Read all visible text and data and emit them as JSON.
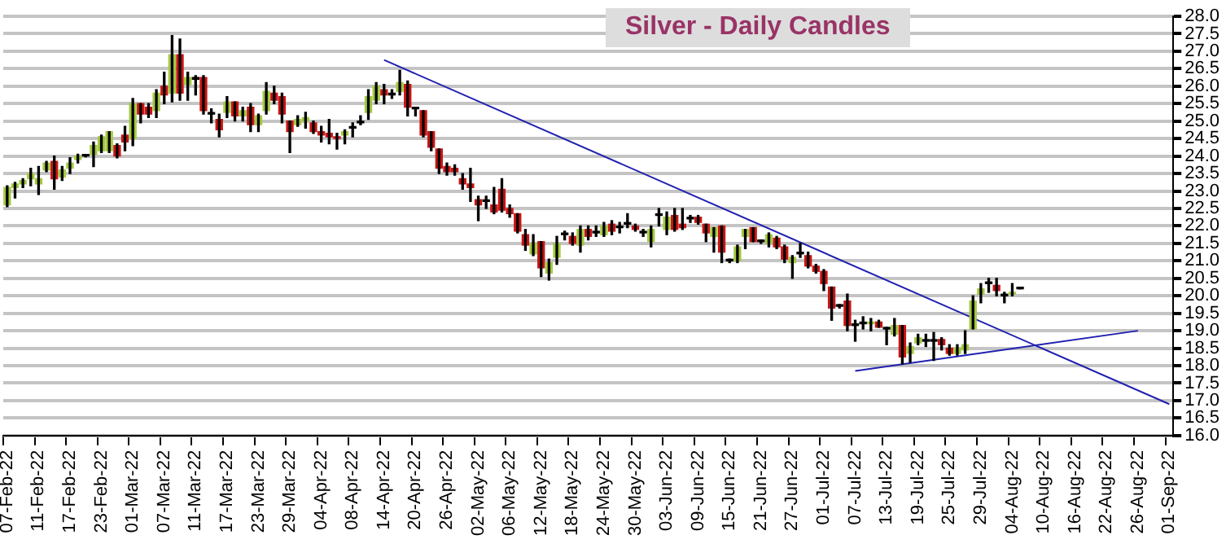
{
  "chart_data": {
    "type": "candlestick",
    "title": "Silver - Daily Candles",
    "categories": [
      "07-Feb-22",
      null,
      null,
      null,
      "11-Feb-22",
      null,
      null,
      null,
      "17-Feb-22",
      null,
      null,
      null,
      "23-Feb-22",
      null,
      null,
      null,
      "01-Mar-22",
      null,
      null,
      null,
      "07-Mar-22",
      null,
      null,
      null,
      "11-Mar-22",
      null,
      null,
      null,
      "17-Mar-22",
      null,
      null,
      null,
      "23-Mar-22",
      null,
      null,
      null,
      "29-Mar-22",
      null,
      null,
      null,
      "04-Apr-22",
      null,
      null,
      null,
      "08-Apr-22",
      null,
      null,
      null,
      "14-Apr-22",
      null,
      null,
      null,
      "20-Apr-22",
      null,
      null,
      null,
      "26-Apr-22",
      null,
      null,
      null,
      "02-May-22",
      null,
      null,
      null,
      "06-May-22",
      null,
      null,
      null,
      "12-May-22",
      null,
      null,
      null,
      "18-May-22",
      null,
      null,
      null,
      "24-May-22",
      null,
      null,
      null,
      "30-May-22",
      null,
      null,
      null,
      "03-Jun-22",
      null,
      null,
      null,
      "09-Jun-22",
      null,
      null,
      null,
      "15-Jun-22",
      null,
      null,
      null,
      "21-Jun-22",
      null,
      null,
      null,
      "27-Jun-22",
      null,
      null,
      null,
      "01-Jul-22",
      null,
      null,
      null,
      "07-Jul-22",
      null,
      null,
      null,
      "13-Jul-22",
      null,
      null,
      null,
      "19-Jul-22",
      null,
      null,
      null,
      "25-Jul-22",
      null,
      null,
      null,
      "29-Jul-22",
      null,
      null,
      null,
      "04-Aug-22",
      null,
      null,
      null,
      "10-Aug-22",
      null,
      null,
      null,
      "16-Aug-22",
      null,
      null,
      null,
      "22-Aug-22",
      null,
      null,
      null,
      "26-Aug-22",
      null,
      null,
      null,
      "01-Sep-22"
    ],
    "ohlc": [
      [
        22.6,
        23.15,
        22.55,
        23.1
      ],
      [
        23.1,
        23.25,
        22.8,
        23.2
      ],
      [
        23.2,
        23.35,
        23.1,
        23.3
      ],
      [
        23.35,
        23.65,
        23.15,
        23.5
      ],
      [
        23.2,
        23.7,
        22.9,
        23.35
      ],
      [
        23.6,
        23.85,
        23.55,
        23.8
      ],
      [
        23.85,
        24.0,
        23.05,
        23.35
      ],
      [
        23.4,
        23.7,
        23.3,
        23.6
      ],
      [
        23.65,
        23.95,
        23.5,
        23.8
      ],
      [
        23.9,
        24.05,
        23.8,
        24.0
      ],
      [
        24.0,
        24.02,
        23.98,
        24.0
      ],
      [
        24.05,
        24.4,
        23.7,
        24.3
      ],
      [
        24.15,
        24.6,
        24.1,
        24.55
      ],
      [
        24.15,
        24.7,
        24.1,
        24.7
      ],
      [
        24.3,
        24.35,
        23.95,
        24.0
      ],
      [
        24.6,
        24.85,
        24.15,
        24.4
      ],
      [
        24.5,
        25.65,
        24.3,
        25.5
      ],
      [
        25.5,
        25.5,
        24.95,
        25.2
      ],
      [
        25.4,
        25.5,
        25.1,
        25.2
      ],
      [
        25.3,
        25.9,
        25.1,
        25.8
      ],
      [
        26.0,
        26.4,
        25.5,
        25.75
      ],
      [
        25.8,
        27.45,
        25.55,
        26.9
      ],
      [
        26.9,
        27.35,
        25.6,
        25.8
      ],
      [
        26.05,
        26.4,
        25.6,
        26.25
      ],
      [
        26.2,
        26.3,
        25.75,
        26.2
      ],
      [
        26.25,
        26.3,
        25.2,
        25.3
      ],
      [
        25.2,
        25.35,
        24.95,
        25.2
      ],
      [
        25.05,
        25.2,
        24.55,
        24.75
      ],
      [
        25.25,
        25.7,
        25.1,
        25.55
      ],
      [
        25.55,
        25.55,
        25.0,
        25.15
      ],
      [
        25.15,
        25.4,
        25.0,
        25.3
      ],
      [
        25.4,
        25.5,
        24.7,
        24.9
      ],
      [
        24.9,
        25.2,
        24.7,
        25.15
      ],
      [
        25.3,
        26.1,
        25.2,
        25.85
      ],
      [
        25.8,
        26.0,
        25.5,
        25.6
      ],
      [
        25.7,
        25.8,
        24.95,
        25.2
      ],
      [
        25.0,
        25.0,
        24.1,
        24.7
      ],
      [
        24.9,
        25.15,
        24.85,
        25.05
      ],
      [
        25.0,
        25.25,
        24.8,
        25.1
      ],
      [
        24.95,
        25.0,
        24.65,
        24.7
      ],
      [
        24.7,
        24.85,
        24.4,
        24.6
      ],
      [
        24.65,
        25.05,
        24.35,
        24.55
      ],
      [
        24.55,
        24.65,
        24.2,
        24.5
      ],
      [
        24.6,
        24.75,
        24.35,
        24.7
      ],
      [
        24.8,
        24.95,
        24.55,
        24.8
      ],
      [
        24.95,
        25.15,
        24.9,
        24.95
      ],
      [
        25.25,
        25.9,
        25.05,
        25.7
      ],
      [
        25.6,
        26.1,
        25.5,
        26.0
      ],
      [
        25.9,
        26.05,
        25.5,
        25.75
      ],
      [
        25.75,
        25.9,
        25.65,
        25.75
      ],
      [
        25.85,
        26.45,
        25.75,
        26.1
      ],
      [
        26.05,
        26.15,
        25.15,
        25.4
      ],
      [
        25.35,
        25.4,
        25.15,
        25.35
      ],
      [
        25.3,
        25.3,
        24.55,
        24.6
      ],
      [
        24.7,
        24.7,
        24.15,
        24.25
      ],
      [
        24.2,
        24.2,
        23.5,
        23.65
      ],
      [
        23.7,
        23.8,
        23.45,
        23.55
      ],
      [
        23.65,
        23.75,
        23.45,
        23.55
      ],
      [
        23.35,
        23.5,
        23.05,
        23.2
      ],
      [
        23.2,
        23.65,
        22.7,
        23.1
      ],
      [
        22.75,
        22.85,
        22.15,
        22.6
      ],
      [
        22.7,
        22.85,
        22.5,
        22.7
      ],
      [
        22.6,
        23.1,
        22.35,
        22.4
      ],
      [
        23.05,
        23.35,
        22.4,
        22.45
      ],
      [
        22.5,
        22.6,
        22.25,
        22.35
      ],
      [
        22.35,
        22.35,
        21.8,
        21.85
      ],
      [
        21.75,
        21.9,
        21.3,
        21.45
      ],
      [
        21.2,
        21.75,
        21.15,
        21.5
      ],
      [
        21.55,
        21.55,
        20.55,
        20.8
      ],
      [
        20.65,
        21.05,
        20.45,
        20.95
      ],
      [
        21.1,
        21.7,
        20.9,
        21.5
      ],
      [
        21.75,
        21.85,
        21.6,
        21.75
      ],
      [
        21.7,
        21.8,
        21.45,
        21.5
      ],
      [
        21.45,
        22.0,
        21.25,
        21.9
      ],
      [
        21.9,
        22.0,
        21.6,
        21.7
      ],
      [
        21.8,
        22.0,
        21.7,
        21.8
      ],
      [
        21.75,
        22.1,
        21.7,
        22.0
      ],
      [
        22.05,
        22.15,
        21.75,
        21.85
      ],
      [
        21.95,
        22.1,
        21.8,
        21.95
      ],
      [
        22.05,
        22.35,
        21.95,
        22.05
      ],
      [
        22.0,
        22.05,
        21.85,
        21.9
      ],
      [
        21.8,
        21.9,
        21.7,
        21.8
      ],
      [
        21.55,
        22.0,
        21.4,
        21.9
      ],
      [
        22.3,
        22.5,
        22.0,
        22.3
      ],
      [
        21.9,
        22.4,
        21.75,
        22.25
      ],
      [
        22.3,
        22.5,
        21.85,
        21.9
      ],
      [
        22.05,
        22.5,
        21.9,
        21.95
      ],
      [
        22.2,
        22.3,
        22.1,
        22.2
      ],
      [
        22.25,
        22.3,
        22.05,
        22.1
      ],
      [
        22.05,
        22.05,
        21.55,
        21.8
      ],
      [
        21.7,
        21.95,
        21.25,
        21.95
      ],
      [
        22.0,
        22.0,
        20.95,
        21.25
      ],
      [
        21.0,
        21.05,
        20.95,
        21.0
      ],
      [
        21.0,
        21.45,
        20.95,
        21.4
      ],
      [
        21.7,
        21.9,
        21.35,
        21.9
      ],
      [
        21.95,
        21.95,
        21.55,
        21.55
      ],
      [
        21.55,
        21.6,
        21.5,
        21.55
      ],
      [
        21.5,
        21.8,
        21.4,
        21.75
      ],
      [
        21.65,
        21.7,
        21.35,
        21.4
      ],
      [
        21.4,
        21.45,
        20.95,
        21.05
      ],
      [
        20.95,
        21.15,
        20.5,
        21.1
      ],
      [
        21.2,
        21.5,
        21.1,
        21.2
      ],
      [
        21.15,
        21.25,
        20.8,
        20.85
      ],
      [
        20.85,
        20.9,
        20.65,
        20.7
      ],
      [
        20.7,
        20.75,
        20.15,
        20.35
      ],
      [
        20.25,
        20.25,
        19.3,
        19.65
      ],
      [
        19.7,
        19.75,
        19.65,
        19.7
      ],
      [
        19.85,
        20.05,
        19.0,
        19.15
      ],
      [
        19.15,
        19.3,
        18.7,
        19.15
      ],
      [
        19.2,
        19.4,
        19.05,
        19.2
      ],
      [
        19.2,
        19.35,
        19.0,
        19.25
      ],
      [
        19.25,
        19.3,
        19.1,
        19.1
      ],
      [
        19.05,
        19.1,
        18.6,
        19.05
      ],
      [
        18.9,
        19.35,
        18.85,
        19.15
      ],
      [
        19.15,
        19.15,
        18.05,
        18.25
      ],
      [
        18.35,
        18.65,
        18.1,
        18.55
      ],
      [
        18.65,
        18.9,
        18.6,
        18.8
      ],
      [
        18.7,
        18.9,
        18.55,
        18.7
      ],
      [
        18.7,
        18.95,
        18.15,
        18.7
      ],
      [
        18.75,
        18.8,
        18.45,
        18.6
      ],
      [
        18.5,
        18.6,
        18.3,
        18.35
      ],
      [
        18.35,
        18.6,
        18.3,
        18.5
      ],
      [
        18.45,
        19.0,
        18.35,
        18.6
      ],
      [
        19.05,
        20.0,
        19.05,
        19.85
      ],
      [
        20.05,
        20.35,
        19.8,
        20.2
      ],
      [
        20.35,
        20.5,
        20.1,
        20.35
      ],
      [
        20.3,
        20.5,
        20.0,
        20.15
      ],
      [
        20.0,
        20.1,
        19.8,
        20.0
      ],
      [
        20.05,
        20.35,
        20.0,
        20.1
      ],
      [
        20.2,
        20.2,
        20.2,
        20.2
      ],
      null,
      null,
      null,
      null,
      null,
      null,
      null,
      null,
      null,
      null,
      null,
      null,
      null,
      null,
      null,
      null,
      null,
      null,
      null
    ],
    "colors": [
      "#a3c940",
      "#a3c940",
      "#a3c940",
      "#a3c940",
      "#a3c940",
      "#a3c940",
      "#c81414",
      "#a3c940",
      "#a3c940",
      "#a3c940",
      "#000000",
      "#a3c940",
      "#a3c940",
      "#a3c940",
      "#c81414",
      "#c81414",
      "#a3c940",
      "#c81414",
      "#c81414",
      "#a3c940",
      "#c81414",
      "#a3c940",
      "#c81414",
      "#a3c940",
      "#000000",
      "#c81414",
      "#000000",
      "#c81414",
      "#a3c940",
      "#c81414",
      "#a3c940",
      "#c81414",
      "#a3c940",
      "#a3c940",
      "#c81414",
      "#c81414",
      "#c81414",
      "#a3c940",
      "#a3c940",
      "#c81414",
      "#c81414",
      "#c81414",
      "#c81414",
      "#a3c940",
      "#000000",
      "#000000",
      "#a3c940",
      "#a3c940",
      "#c81414",
      "#000000",
      "#a3c940",
      "#c81414",
      "#000000",
      "#c81414",
      "#c81414",
      "#c81414",
      "#c81414",
      "#c81414",
      "#c81414",
      "#c81414",
      "#c81414",
      "#000000",
      "#c81414",
      "#c81414",
      "#c81414",
      "#c81414",
      "#c81414",
      "#a3c940",
      "#c81414",
      "#a3c940",
      "#a3c940",
      "#000000",
      "#c81414",
      "#a3c940",
      "#c81414",
      "#000000",
      "#a3c940",
      "#c81414",
      "#000000",
      "#000000",
      "#c81414",
      "#000000",
      "#a3c940",
      "#000000",
      "#a3c940",
      "#c81414",
      "#c81414",
      "#000000",
      "#c81414",
      "#c81414",
      "#a3c940",
      "#c81414",
      "#000000",
      "#a3c940",
      "#a3c940",
      "#c81414",
      "#000000",
      "#a3c940",
      "#c81414",
      "#c81414",
      "#a3c940",
      "#000000",
      "#c81414",
      "#c81414",
      "#c81414",
      "#c81414",
      "#000000",
      "#c81414",
      "#000000",
      "#000000",
      "#a3c940",
      "#c81414",
      "#000000",
      "#a3c940",
      "#c81414",
      "#a3c940",
      "#a3c940",
      "#000000",
      "#000000",
      "#c81414",
      "#c81414",
      "#a3c940",
      "#a3c940",
      "#a3c940",
      "#a3c940",
      "#000000",
      "#c81414",
      "#000000",
      "#a3c940",
      "#000000",
      null,
      null,
      null,
      null,
      null,
      null,
      null,
      null,
      null,
      null,
      null,
      null,
      null,
      null,
      null,
      null,
      null,
      null,
      null
    ],
    "series": [
      {
        "type": "line",
        "color": "#2020b0",
        "x": [
          "14-Apr-22",
          "01-Sep-22"
        ],
        "values": [
          26.75,
          16.9
        ]
      },
      {
        "type": "line",
        "color": "#2020b0",
        "x": [
          "07-Jul-22",
          "26-Aug-22"
        ],
        "values": [
          17.85,
          19.0
        ]
      }
    ],
    "ylim": [
      16,
      28
    ],
    "yticks": [
      {
        "value": 16,
        "label": "16.0"
      },
      {
        "value": 16.5,
        "label": "16.5"
      },
      {
        "value": 17,
        "label": "17.0"
      },
      {
        "value": 17.5,
        "label": "17.5"
      },
      {
        "value": 18,
        "label": "18.0"
      },
      {
        "value": 18.5,
        "label": "18.5"
      },
      {
        "value": 19,
        "label": "19.0"
      },
      {
        "value": 19.5,
        "label": "19.5"
      },
      {
        "value": 20,
        "label": "20.0"
      },
      {
        "value": 20.5,
        "label": "20.5"
      },
      {
        "value": 21,
        "label": "21.0"
      },
      {
        "value": 21.5,
        "label": "21.5"
      },
      {
        "value": 22,
        "label": "22.0"
      },
      {
        "value": 22.5,
        "label": "22.5"
      },
      {
        "value": 23,
        "label": "23.0"
      },
      {
        "value": 23.5,
        "label": "23.5"
      },
      {
        "value": 24,
        "label": "24.0"
      },
      {
        "value": 24.5,
        "label": "24.5"
      },
      {
        "value": 25,
        "label": "25.0"
      },
      {
        "value": 25.5,
        "label": "25.5"
      },
      {
        "value": 26,
        "label": "26.0"
      },
      {
        "value": 26.5,
        "label": "26.5"
      },
      {
        "value": 27,
        "label": "27.0"
      },
      {
        "value": 27.5,
        "label": "27.5"
      },
      {
        "value": 28,
        "label": "28.0"
      }
    ],
    "grid": "y"
  }
}
